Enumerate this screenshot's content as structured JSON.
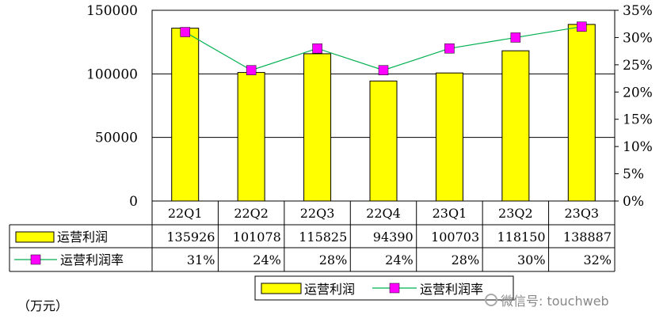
{
  "chart_data": {
    "type": "bar",
    "categories": [
      "22Q1",
      "22Q2",
      "22Q3",
      "22Q4",
      "23Q1",
      "23Q2",
      "23Q3"
    ],
    "series": [
      {
        "name": "运营利润",
        "type": "bar",
        "axis": "left",
        "color": "#ffff00",
        "values": [
          135926,
          101078,
          115825,
          94390,
          100703,
          118150,
          138887
        ],
        "labels": [
          "135926",
          "101078",
          "115825",
          "94390",
          "100703",
          "118150",
          "138887"
        ]
      },
      {
        "name": "运营利润率",
        "type": "line",
        "axis": "right",
        "color": "#00b050",
        "marker_color": "#ff00ff",
        "values": [
          0.31,
          0.24,
          0.28,
          0.24,
          0.28,
          0.3,
          0.32
        ],
        "labels": [
          "31%",
          "24%",
          "28%",
          "24%",
          "28%",
          "30%",
          "32%"
        ]
      }
    ],
    "left_axis": {
      "ylim": [
        0,
        150000
      ],
      "ticks": [
        "0",
        "50000",
        "100000",
        "150000"
      ]
    },
    "right_axis": {
      "ylim": [
        0,
        0.35
      ],
      "ticks": [
        "0%",
        "5%",
        "10%",
        "15%",
        "20%",
        "25%",
        "30%",
        "35%"
      ]
    },
    "grid": true,
    "legend_position": "bottom",
    "unit_note": "（万元）",
    "watermark": "微信号: touchweb"
  }
}
